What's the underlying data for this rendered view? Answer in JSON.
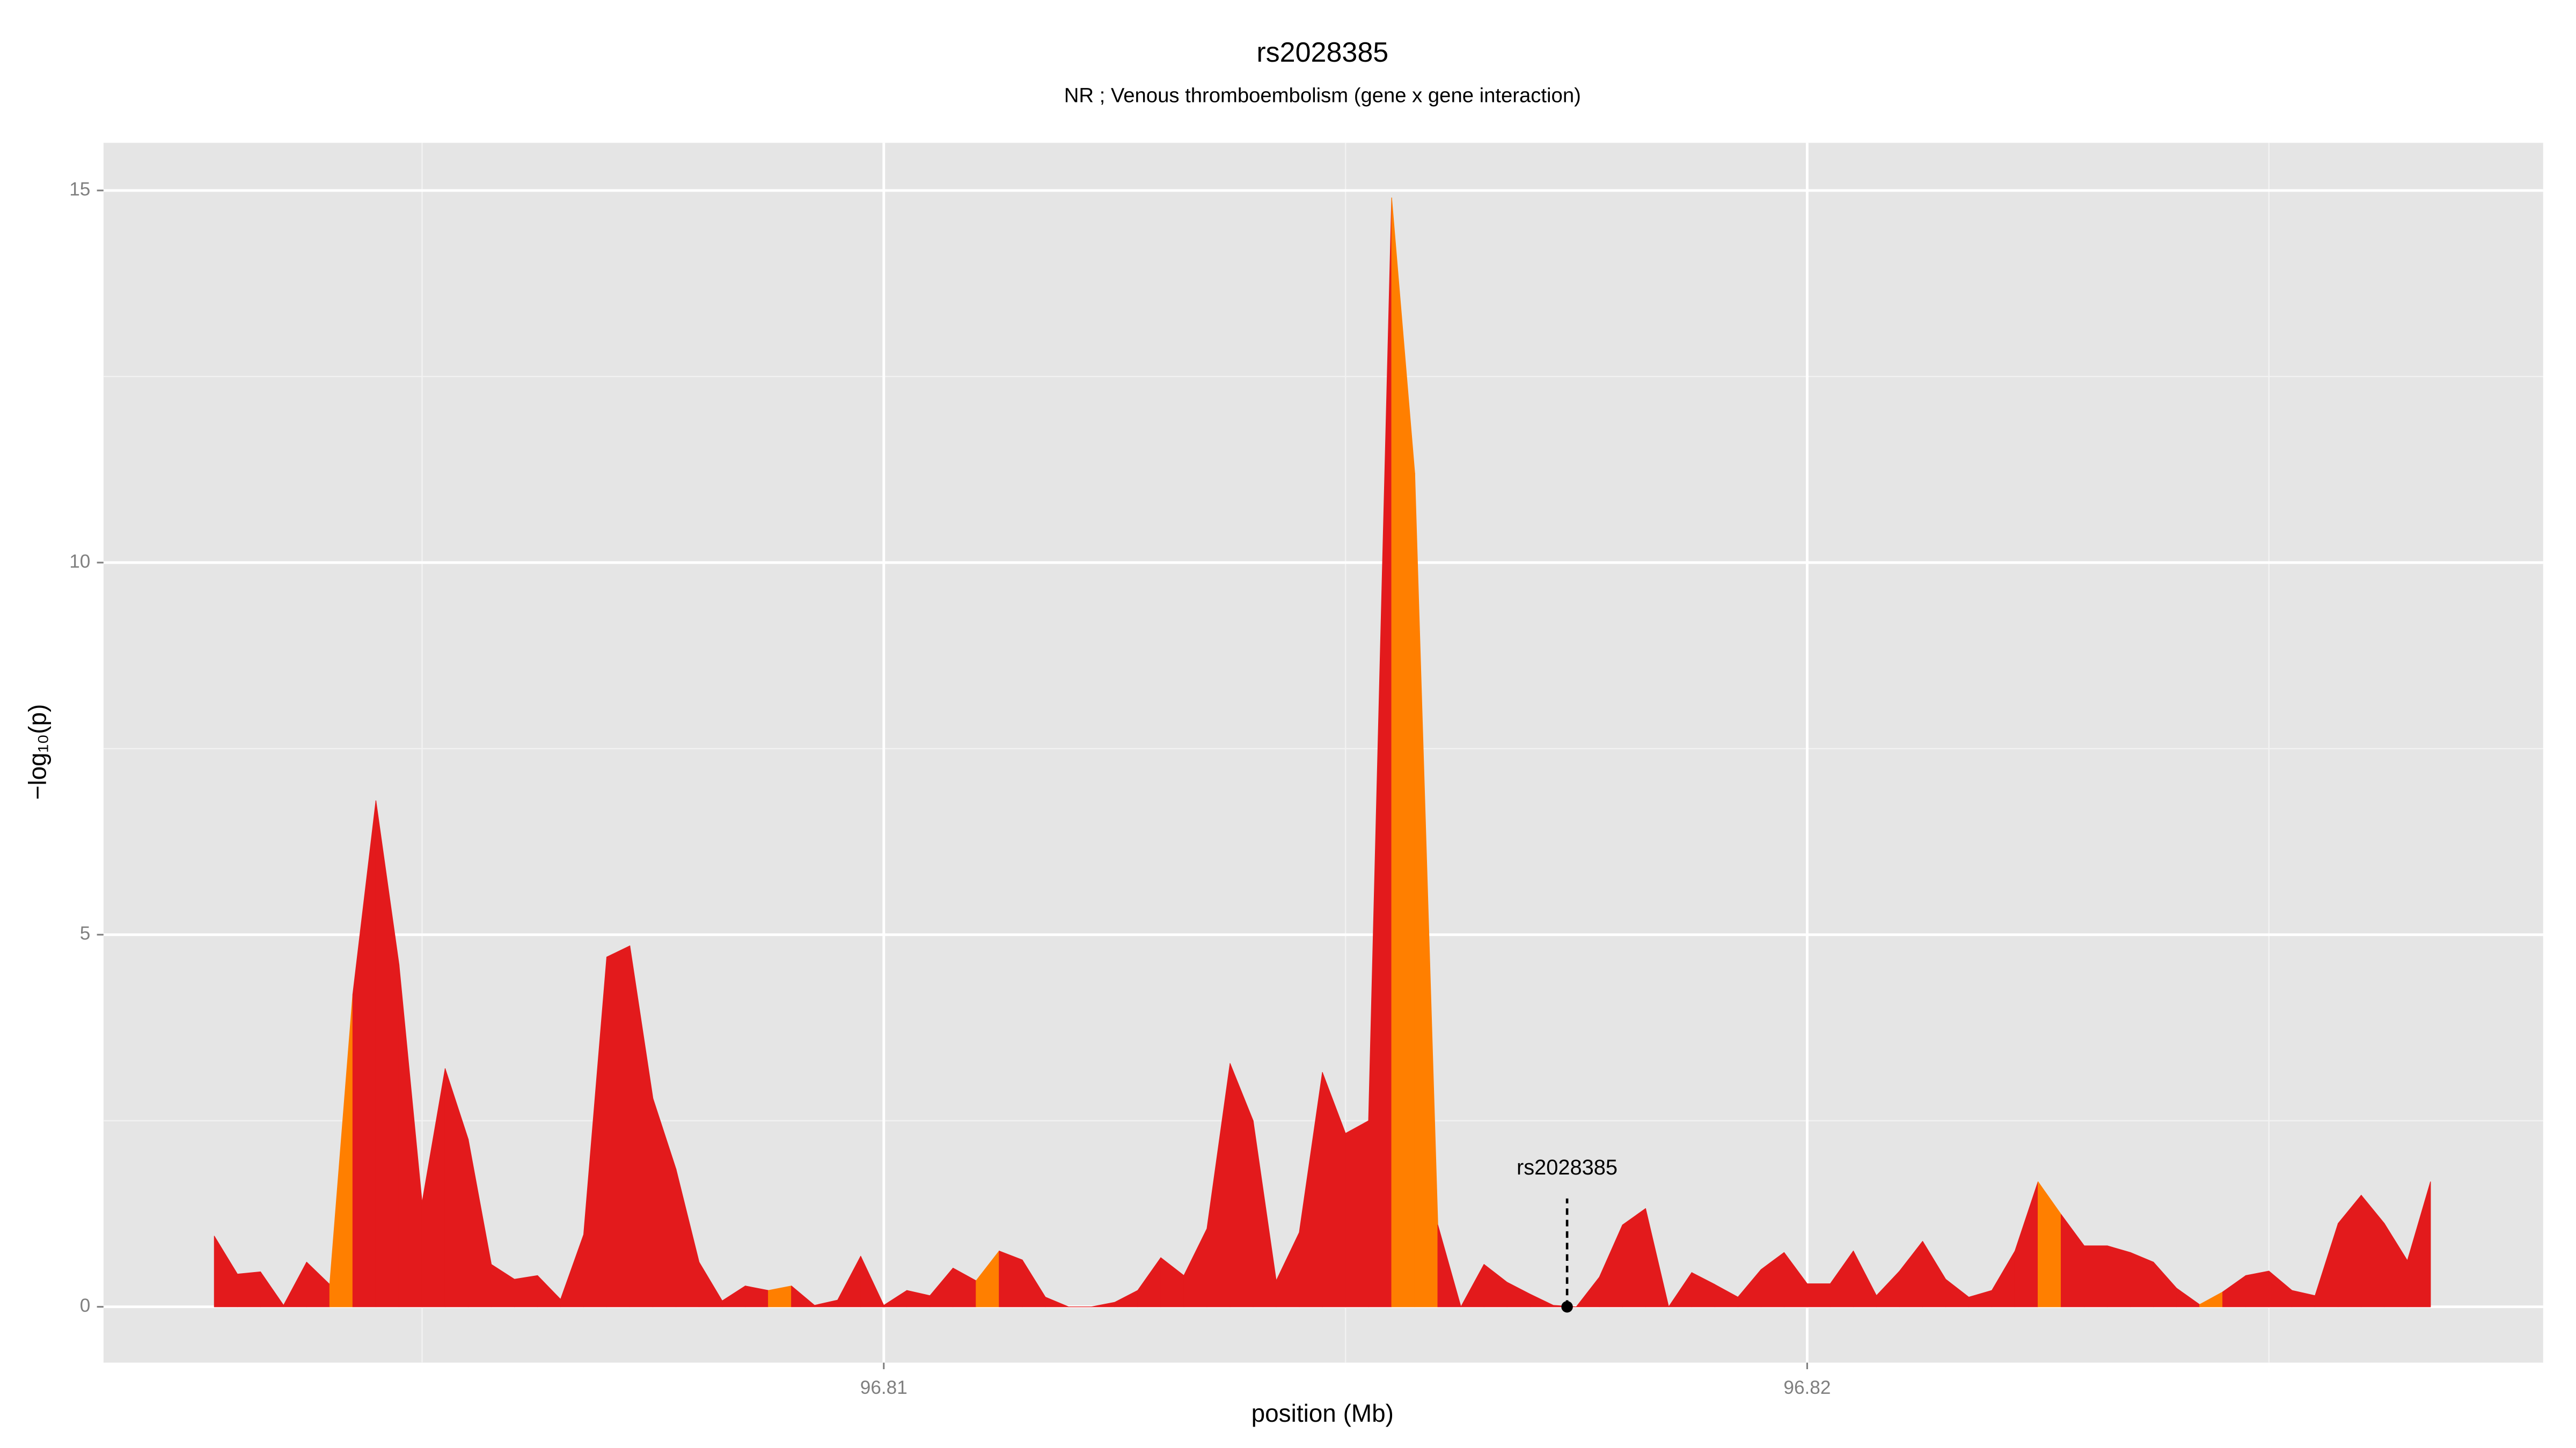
{
  "chart_data": {
    "type": "area",
    "title": "rs2028385",
    "subtitle": "NR ; Venous thromboembolism (gene x gene interaction)",
    "x_label": "position (Mb)",
    "y_label": "−log₁₀(p)",
    "x": [
      96.80275,
      96.803,
      96.80325,
      96.8035,
      96.80375,
      96.804,
      96.80425,
      96.8045,
      96.80475,
      96.805,
      96.80525,
      96.8055,
      96.80575,
      96.806,
      96.80625,
      96.8065,
      96.80675,
      96.807,
      96.80725,
      96.8075,
      96.80775,
      96.808,
      96.80825,
      96.8085,
      96.80875,
      96.809,
      96.80925,
      96.8095,
      96.80975,
      96.81,
      96.81025,
      96.8105,
      96.81075,
      96.811,
      96.81125,
      96.8115,
      96.81175,
      96.812,
      96.81225,
      96.8125,
      96.81275,
      96.813,
      96.81325,
      96.8135,
      96.81375,
      96.814,
      96.81425,
      96.8145,
      96.81475,
      96.815,
      96.81525,
      96.8155,
      96.81575,
      96.816,
      96.81625,
      96.8165,
      96.81675,
      96.817,
      96.81725,
      96.8175,
      96.81775,
      96.818,
      96.81825,
      96.8185,
      96.81875,
      96.819,
      96.81925,
      96.8195,
      96.81975,
      96.82,
      96.82025,
      96.8205,
      96.82075,
      96.821,
      96.82125,
      96.8215,
      96.82175,
      96.822,
      96.82225,
      96.8225,
      96.82275,
      96.823,
      96.82325,
      96.8235,
      96.82375,
      96.824,
      96.82425,
      96.8245,
      96.82475,
      96.825,
      96.82525,
      96.8255,
      96.82575,
      96.826,
      96.82625,
      96.8265,
      96.82675
    ],
    "values": [
      0.95,
      0.44,
      0.47,
      0.02,
      0.6,
      0.3,
      4.2,
      6.8,
      4.6,
      1.4,
      3.2,
      2.25,
      0.57,
      0.37,
      0.42,
      0.1,
      0.97,
      4.7,
      4.85,
      2.8,
      1.85,
      0.6,
      0.08,
      0.28,
      0.22,
      0.28,
      0.02,
      0.09,
      0.68,
      0.02,
      0.22,
      0.15,
      0.52,
      0.35,
      0.75,
      0.63,
      0.13,
      0,
      0,
      0.06,
      0.22,
      0.66,
      0.42,
      1.05,
      3.27,
      2.5,
      0.35,
      1.0,
      3.15,
      2.33,
      2.5,
      14.9,
      11.2,
      1.1,
      0,
      0.57,
      0.33,
      0.17,
      0.02,
      0,
      0.4,
      1.1,
      1.32,
      0,
      0.46,
      0.3,
      0.13,
      0.5,
      0.73,
      0.31,
      0.31,
      0.75,
      0.15,
      0.48,
      0.88,
      0.37,
      0.13,
      0.22,
      0.75,
      1.68,
      1.24,
      0.82,
      0.82,
      0.73,
      0.6,
      0.25,
      0.03,
      0.2,
      0.42,
      0.48,
      0.22,
      0.15,
      1.12,
      1.5,
      1.12,
      0.62,
      1.68
    ],
    "colors": [
      "#e31a1c",
      "#e31a1c",
      "#e31a1c",
      "#e31a1c",
      "#e31a1c",
      "#ff7f00",
      "#e31a1c",
      "#e31a1c",
      "#e31a1c",
      "#e31a1c",
      "#e31a1c",
      "#e31a1c",
      "#e31a1c",
      "#e31a1c",
      "#e31a1c",
      "#e31a1c",
      "#e31a1c",
      "#e31a1c",
      "#e31a1c",
      "#e31a1c",
      "#e31a1c",
      "#e31a1c",
      "#e31a1c",
      "#e31a1c",
      "#ff7f00",
      "#e31a1c",
      "#e31a1c",
      "#e31a1c",
      "#e31a1c",
      "#e31a1c",
      "#e31a1c",
      "#e31a1c",
      "#e31a1c",
      "#ff7f00",
      "#e31a1c",
      "#e31a1c",
      "#e31a1c",
      "#e31a1c",
      "#e31a1c",
      "#e31a1c",
      "#e31a1c",
      "#e31a1c",
      "#e31a1c",
      "#e31a1c",
      "#e31a1c",
      "#e31a1c",
      "#e31a1c",
      "#e31a1c",
      "#e31a1c",
      "#e31a1c",
      "#e31a1c",
      "#ff7f00",
      "#ff7f00",
      "#e31a1c",
      "#e31a1c",
      "#e31a1c",
      "#e31a1c",
      "#e31a1c",
      "#e31a1c",
      "#e31a1c",
      "#e31a1c",
      "#e31a1c",
      "#e31a1c",
      "#e31a1c",
      "#e31a1c",
      "#e31a1c",
      "#e31a1c",
      "#e31a1c",
      "#e31a1c",
      "#e31a1c",
      "#e31a1c",
      "#e31a1c",
      "#e31a1c",
      "#e31a1c",
      "#e31a1c",
      "#e31a1c",
      "#e31a1c",
      "#e31a1c",
      "#e31a1c",
      "#ff7f00",
      "#e31a1c",
      "#e31a1c",
      "#e31a1c",
      "#e31a1c",
      "#e31a1c",
      "#e31a1c",
      "#ff7f00",
      "#e31a1c",
      "#e31a1c",
      "#e31a1c",
      "#e31a1c",
      "#e31a1c",
      "#e31a1c",
      "#e31a1c",
      "#e31a1c",
      "#e31a1c",
      "#e31a1c"
    ],
    "annotation": {
      "label": "rs2028385",
      "x": 96.8174,
      "y": 0
    },
    "xlim": [
      96.80155,
      96.82797
    ],
    "xticks": [
      96.81,
      96.82
    ],
    "xminor": [
      96.805,
      96.815,
      96.825
    ],
    "ylim": [
      -0.75,
      15.64
    ],
    "yticks": [
      0,
      5,
      10,
      15
    ],
    "yminor": [
      2.5,
      7.5,
      12.5
    ],
    "grid": true
  }
}
